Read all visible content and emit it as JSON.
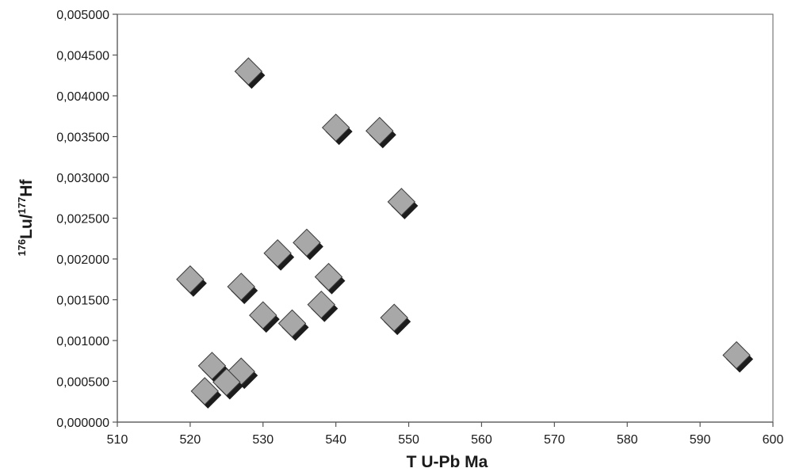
{
  "chart_data": {
    "type": "scatter",
    "xlabel": "T U-Pb Ma",
    "ylabel_main": "Lu/",
    "ylabel_sup1": "176",
    "ylabel_sup2": "177",
    "ylabel_tail": "Hf",
    "xlim": [
      510,
      600
    ],
    "ylim": [
      0,
      0.005
    ],
    "xticks": [
      "510",
      "520",
      "530",
      "540",
      "550",
      "560",
      "570",
      "580",
      "590",
      "600"
    ],
    "yticks": [
      "0,000000",
      "0,000500",
      "0,001000",
      "0,001500",
      "0,002000",
      "0,002500",
      "0,003000",
      "0,003500",
      "0,004000",
      "0,004500",
      "0,005000"
    ],
    "grid": false,
    "legend": "none",
    "marker": "diamond",
    "marker_color": "#a8a8a8",
    "points": [
      {
        "x": 528,
        "y": 0.0043
      },
      {
        "x": 540,
        "y": 0.00361
      },
      {
        "x": 546,
        "y": 0.00357
      },
      {
        "x": 549,
        "y": 0.0027
      },
      {
        "x": 536,
        "y": 0.0022
      },
      {
        "x": 532,
        "y": 0.00207
      },
      {
        "x": 539,
        "y": 0.00178
      },
      {
        "x": 520,
        "y": 0.00175
      },
      {
        "x": 527,
        "y": 0.00166
      },
      {
        "x": 538,
        "y": 0.00144
      },
      {
        "x": 530,
        "y": 0.00131
      },
      {
        "x": 548,
        "y": 0.00128
      },
      {
        "x": 534,
        "y": 0.00121
      },
      {
        "x": 595,
        "y": 0.00082
      },
      {
        "x": 523,
        "y": 0.00069
      },
      {
        "x": 527,
        "y": 0.00062
      },
      {
        "x": 525,
        "y": 0.00049
      },
      {
        "x": 522,
        "y": 0.00038
      }
    ]
  }
}
